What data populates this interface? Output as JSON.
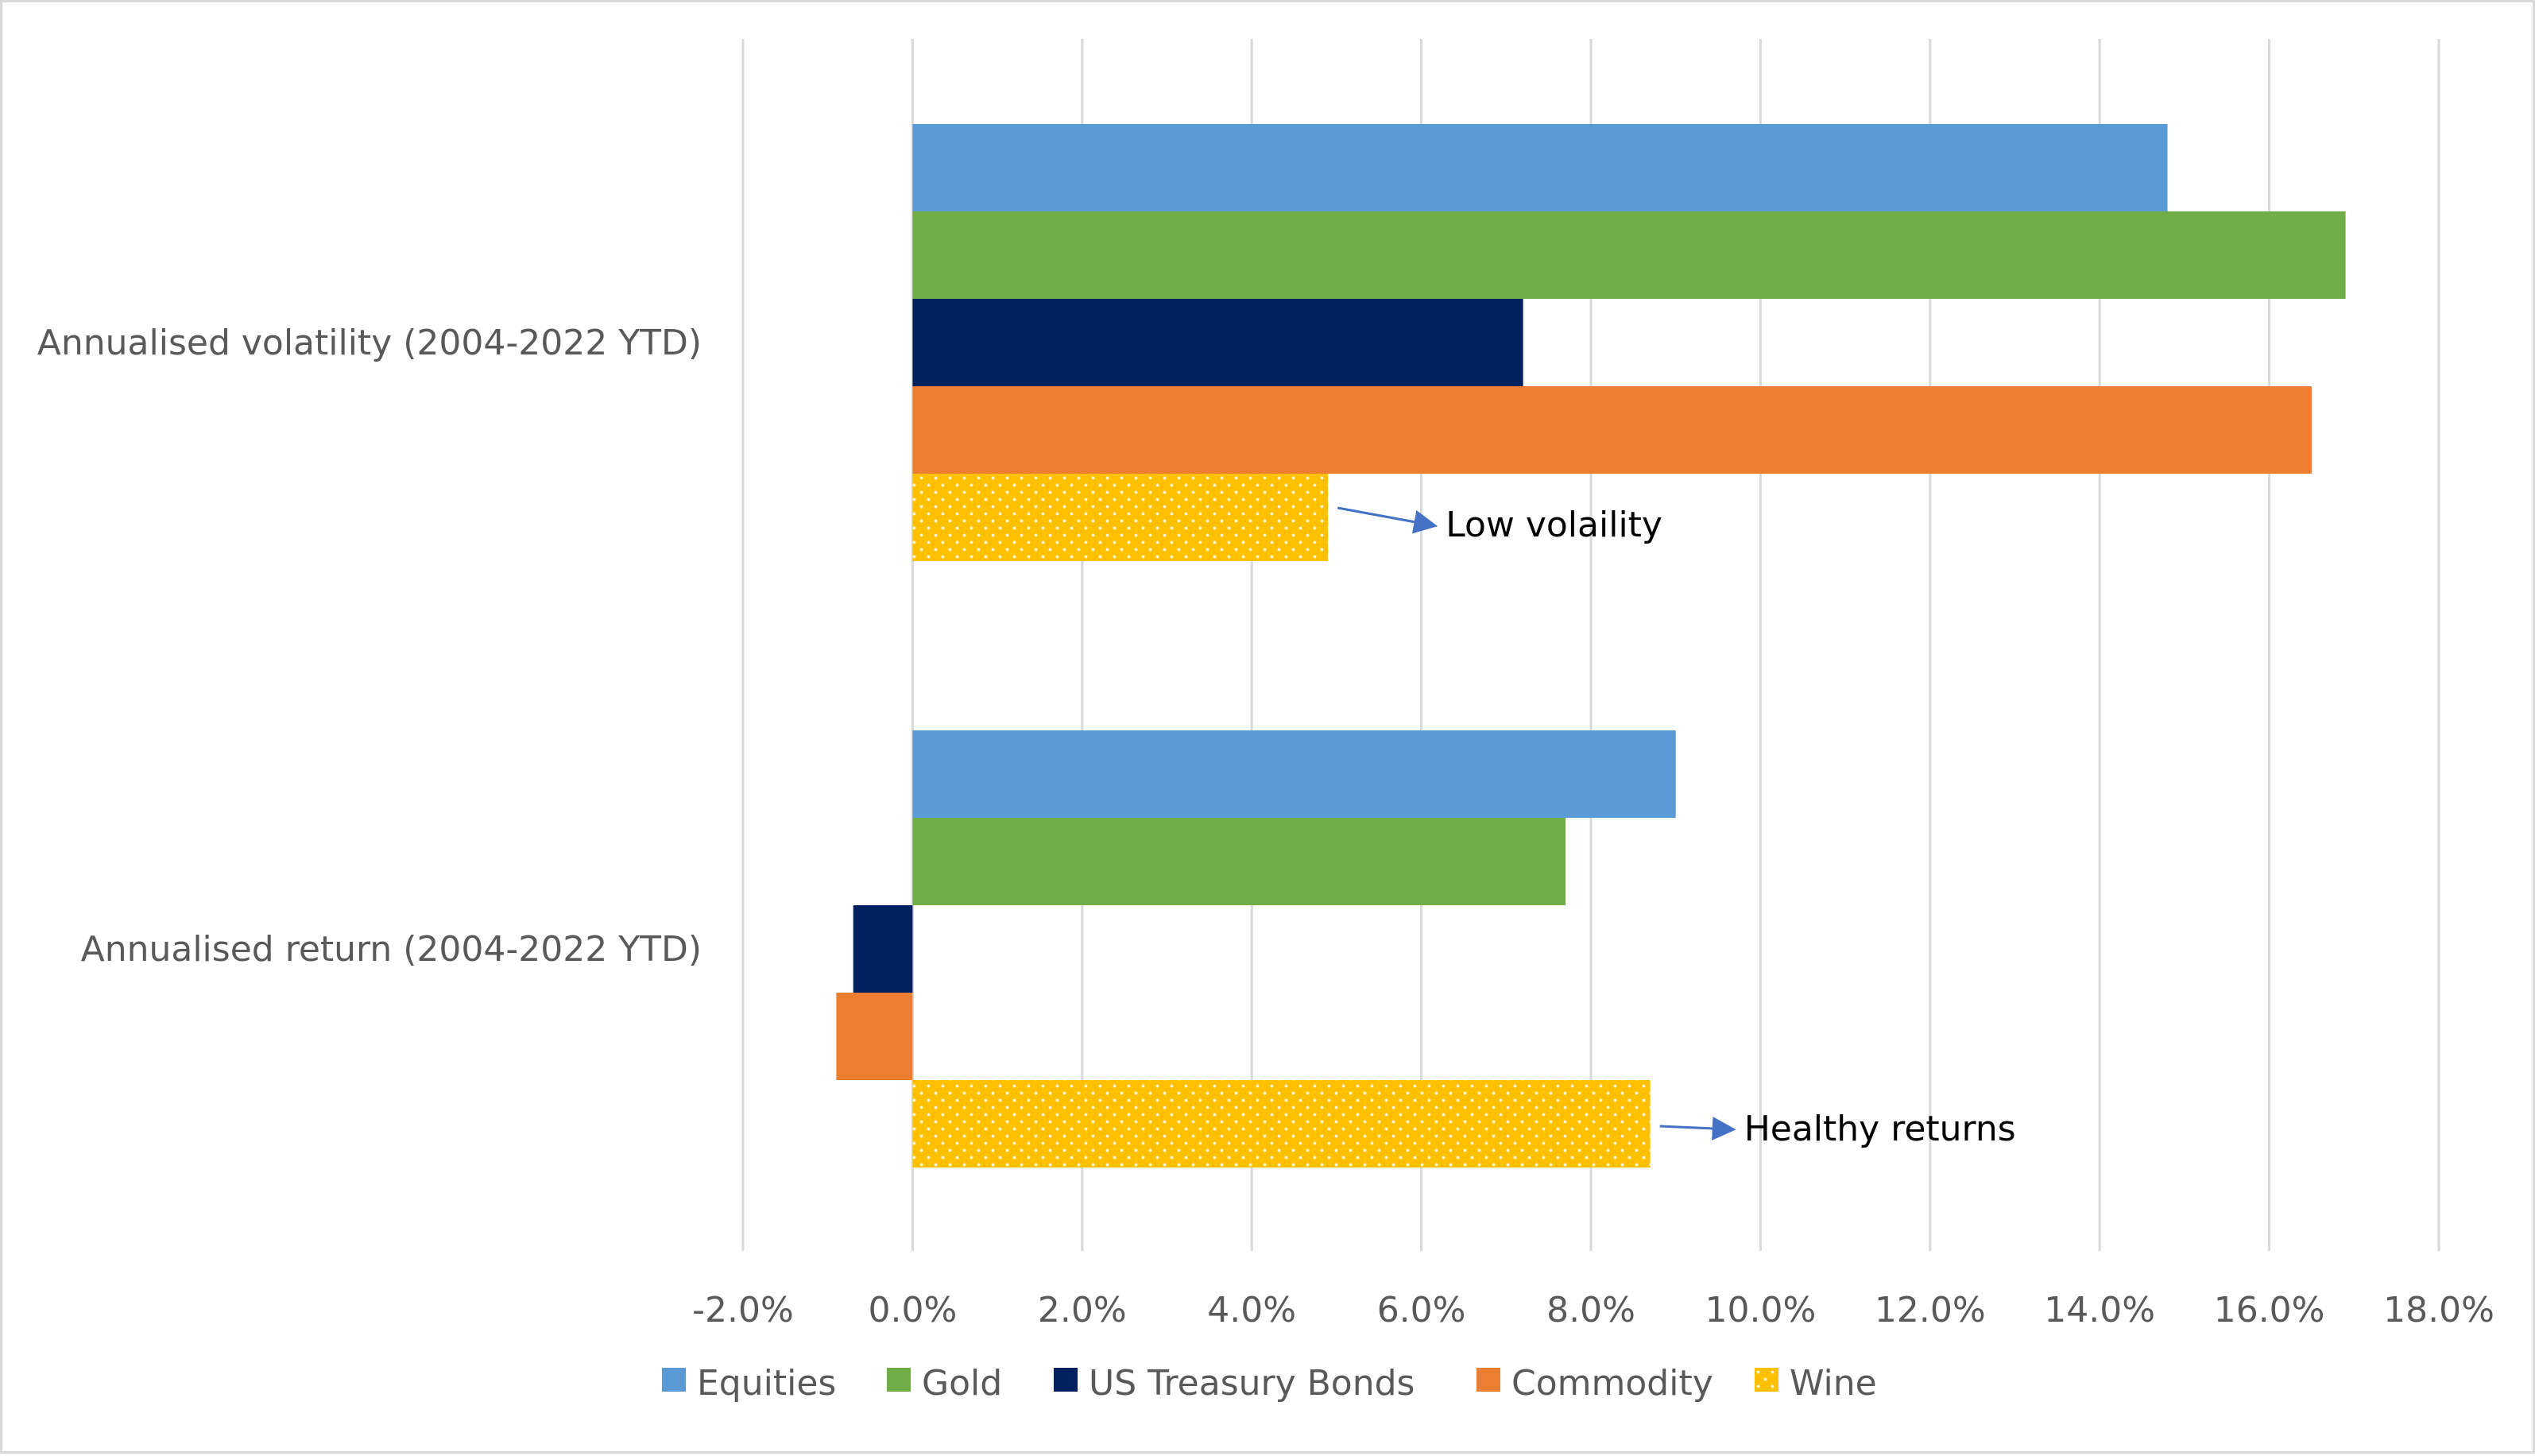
{
  "chart_data": {
    "type": "bar",
    "orientation": "horizontal",
    "categories": [
      "Annualised volatility (2004-2022 YTD)",
      "Annualised return (2004-2022 YTD)"
    ],
    "series": [
      {
        "name": "Equities",
        "color": "#5b9bd5",
        "values": [
          14.8,
          9.0
        ]
      },
      {
        "name": "Gold",
        "color": "#70ad47",
        "values": [
          16.9,
          7.7
        ]
      },
      {
        "name": "US Treasury Bonds",
        "color": "#002060",
        "values": [
          7.2,
          -0.7
        ]
      },
      {
        "name": "Commodity",
        "color": "#ed7d31",
        "values": [
          16.5,
          -0.9
        ]
      },
      {
        "name": "Wine",
        "color": "#ffc000",
        "pattern": "dotted",
        "values": [
          4.9,
          8.7
        ]
      }
    ],
    "x_ticks": [
      "-2.0%",
      "0.0%",
      "2.0%",
      "4.0%",
      "6.0%",
      "8.0%",
      "10.0%",
      "12.0%",
      "14.0%",
      "16.0%",
      "18.0%"
    ],
    "xlim": [
      -2.0,
      18.0
    ],
    "unit": "%",
    "grid": "vertical",
    "legend_position": "bottom",
    "annotations": [
      {
        "text": "Low volaility",
        "category_index": 0,
        "series_index": 4,
        "arrow_color": "#4472c4"
      },
      {
        "text": "Healthy returns",
        "category_index": 1,
        "series_index": 4,
        "arrow_color": "#4472c4"
      }
    ]
  }
}
